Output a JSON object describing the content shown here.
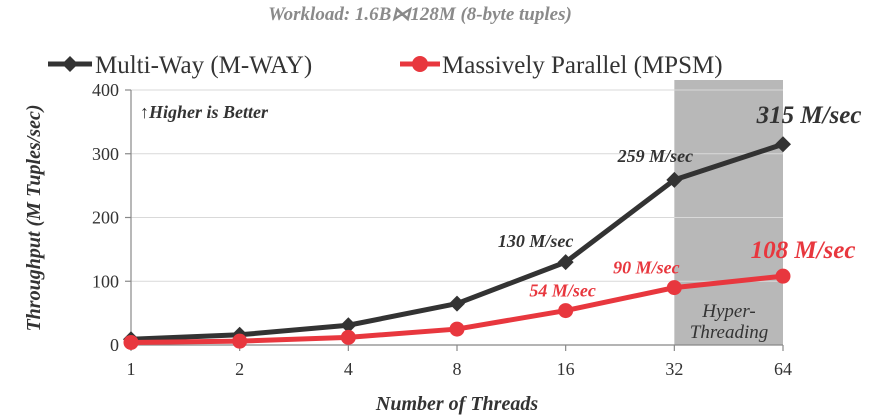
{
  "chart_data": {
    "type": "line",
    "title": "Workload: 1.6B⋈128M (8-byte tuples)",
    "xlabel": "Number of Threads",
    "ylabel": "Throughput (M Tuples/sec)",
    "categories": [
      "1",
      "2",
      "4",
      "8",
      "16",
      "32",
      "64"
    ],
    "ylim": [
      0,
      400
    ],
    "yticks": [
      0,
      100,
      200,
      300,
      400
    ],
    "grid": true,
    "legend_position": "top",
    "series": [
      {
        "name": "Multi-Way (M-WAY)",
        "color": "#333333",
        "values": [
          9,
          16,
          31,
          65,
          130,
          259,
          315
        ]
      },
      {
        "name": "Massively Parallel (MPSM)",
        "color": "#e8373e",
        "values": [
          4,
          6,
          12,
          25,
          54,
          90,
          108
        ]
      }
    ],
    "data_labels": [
      {
        "series": 0,
        "index": 4,
        "text": "130 M/sec",
        "size": "normal"
      },
      {
        "series": 0,
        "index": 5,
        "text": "259 M/sec",
        "size": "normal"
      },
      {
        "series": 0,
        "index": 6,
        "text": "315 M/sec",
        "size": "large"
      },
      {
        "series": 1,
        "index": 4,
        "text": "54 M/sec",
        "size": "normal"
      },
      {
        "series": 1,
        "index": 5,
        "text": "90 M/sec",
        "size": "normal"
      },
      {
        "series": 1,
        "index": 6,
        "text": "108 M/sec",
        "size": "large"
      }
    ],
    "annotation": "↑Higher is Better",
    "shaded_region": {
      "from": "32",
      "to": "64",
      "label_line1": "Hyper-",
      "label_line2": "Threading",
      "color": "#b8b8b8"
    }
  }
}
